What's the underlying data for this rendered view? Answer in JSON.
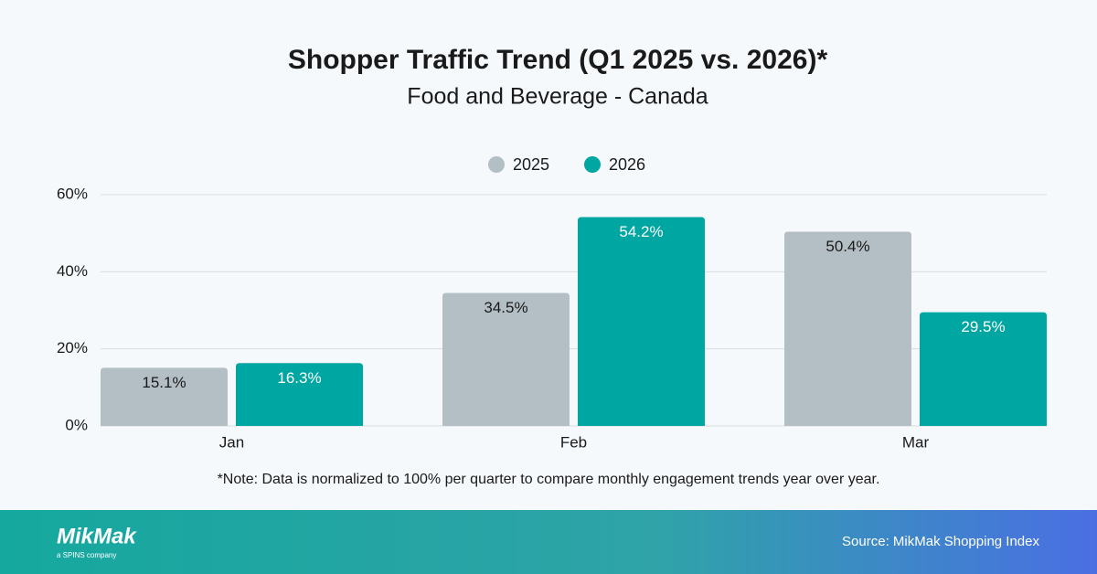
{
  "chart_data": {
    "type": "bar",
    "title": "Shopper Traffic Trend (Q1 2025 vs. 2026)*",
    "subtitle": "Food and Beverage - Canada",
    "categories": [
      "Jan",
      "Feb",
      "Mar"
    ],
    "series": [
      {
        "name": "2025",
        "color": "#b4bec5",
        "values": [
          15.1,
          34.5,
          50.4
        ],
        "value_labels": [
          "15.1%",
          "34.5%",
          "50.4%"
        ]
      },
      {
        "name": "2026",
        "color": "#00a6a1",
        "values": [
          16.3,
          54.2,
          29.5
        ],
        "value_labels": [
          "16.3%",
          "54.2%",
          "29.5%"
        ]
      }
    ],
    "ylim": [
      0,
      60
    ],
    "yticks": [
      {
        "value": 0,
        "label": "0%"
      },
      {
        "value": 20,
        "label": "20%"
      },
      {
        "value": 40,
        "label": "40%"
      },
      {
        "value": 60,
        "label": "60%"
      }
    ],
    "grid": true,
    "legend": "top",
    "note": "*Note: Data is normalized to 100% per quarter to compare monthly engagement trends year over year."
  },
  "footer": {
    "logo": "MikMak",
    "tagline": "a SPINS company",
    "source": "Source: MikMak Shopping Index"
  }
}
